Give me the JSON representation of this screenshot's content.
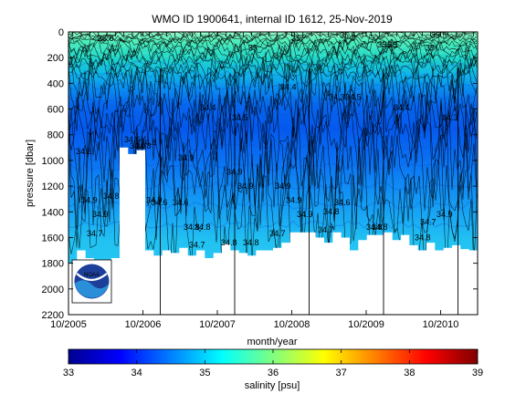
{
  "chart_data": {
    "type": "heatmap",
    "title": "WMO ID 1900641, internal ID 1612, 25-Nov-2019",
    "xlabel": "month/year",
    "ylabel": "pressure [dbar]",
    "x_ticks": [
      "10/2005",
      "10/2006",
      "10/2007",
      "10/2008",
      "10/2009",
      "10/2010"
    ],
    "y_ticks": [
      "0",
      "200",
      "400",
      "600",
      "800",
      "1000",
      "1200",
      "1400",
      "1600",
      "1800",
      "2000",
      "2200"
    ],
    "ylim": [
      0,
      2200
    ],
    "y_reversed": true,
    "colorbar": {
      "label": "salinity [psu]",
      "ticks": [
        "33",
        "34",
        "35",
        "36",
        "37",
        "38",
        "39"
      ],
      "range": [
        33,
        39
      ],
      "colormap": "jet"
    },
    "contour_labels": [
      "34.6",
      "34.6",
      "34.6",
      "34.8",
      "34.7",
      "34.7",
      "34.8",
      "34.8",
      "34.9",
      "34.9",
      "34.9",
      "34.9",
      "34.9",
      "34.8",
      "34.8",
      "34.7",
      "34.7",
      "34.8",
      "34.8",
      "34.5",
      "34.4",
      "34.3",
      "35",
      "35",
      "34.9",
      "34.8",
      "34.7",
      "34.9",
      "34.9",
      "34.6",
      "35.1",
      "35.5",
      "35.6",
      "34.9",
      "34.8",
      "34.8",
      "35",
      "35.6",
      "35",
      "34.9",
      "34.8",
      "34.6",
      "34.4",
      "35",
      "34.9",
      "34.5",
      "34.4",
      "34.3"
    ],
    "profile_bottom_dbar": [
      1800,
      1700,
      1760,
      1850,
      1820,
      1760,
      900,
      950,
      920,
      1700,
      1740,
      1700,
      1720,
      1680,
      1740,
      1700,
      1760,
      1720,
      1650,
      1700,
      1720,
      1740,
      1700,
      1700,
      1680,
      1640,
      1560,
      1560,
      1560,
      1600,
      1640,
      1560,
      1600,
      1700,
      1620,
      1580,
      1580,
      1560,
      1620,
      1580,
      1660,
      1700,
      1640,
      1700,
      1680,
      1660,
      1690,
      1700
    ],
    "cycle_marker_dates": [
      "10/2006",
      "10/2007",
      "10/2008",
      "10/2009",
      "10/2010"
    ],
    "grid": false
  },
  "logo": {
    "text": "NOAA"
  },
  "colors": {
    "background": "#ffffff",
    "axis": "#000000",
    "mask": "#ffffff"
  }
}
